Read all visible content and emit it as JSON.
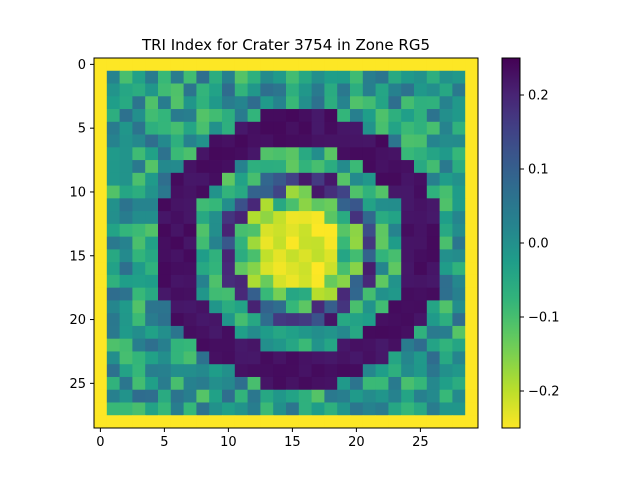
{
  "chart_data": {
    "type": "heatmap",
    "title": "TRI Index for Crater 3754 in Zone RG5",
    "xlabel": "",
    "ylabel": "",
    "rows": 29,
    "cols": 30,
    "xlim": [
      -0.5,
      29.5
    ],
    "ylim": [
      28.5,
      -0.5
    ],
    "x_ticks": [
      0,
      5,
      10,
      15,
      20,
      25
    ],
    "y_ticks": [
      0,
      5,
      10,
      15,
      20,
      25
    ],
    "colormap": "viridis_r",
    "color_range": [
      -0.25,
      0.25
    ],
    "colorbar_ticks": [
      0.2,
      0.1,
      0.0,
      -0.1,
      -0.2
    ],
    "colorbar_tick_labels": [
      "0.2",
      "0.1",
      "0.0",
      "−0.1",
      "−0.2"
    ],
    "grid": false,
    "pattern_description": "Border cells at -0.25 (yellow); concentric ring structure with dark (+0.25) outer ring, mixed teal/green inner ring, bright yellow (-0.25) core around columns 12-20, rows 10-24."
  },
  "colors": {
    "low": "#fde725",
    "high": "#440154"
  }
}
